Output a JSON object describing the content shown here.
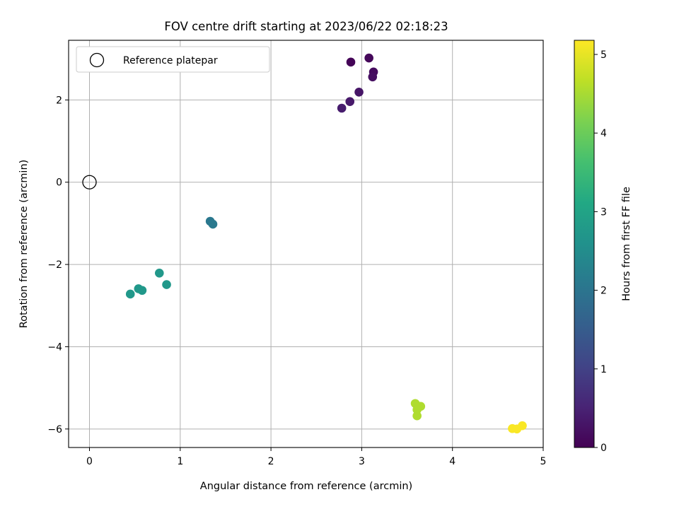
{
  "chart_data": {
    "type": "scatter",
    "title": "FOV centre drift starting at 2023/06/22 02:18:23",
    "xlabel": "Angular distance from reference (arcmin)",
    "ylabel": "Rotation from reference (arcmin)",
    "xlim": [
      -0.23,
      5.0
    ],
    "ylim": [
      -6.45,
      3.45
    ],
    "xticks": [
      0,
      1,
      2,
      3,
      4,
      5
    ],
    "xtick_labels": [
      "0",
      "1",
      "2",
      "3",
      "4",
      "5"
    ],
    "yticks": [
      2,
      0,
      -2,
      -4,
      -6
    ],
    "ytick_labels": [
      "2",
      "0",
      "−2",
      "−4",
      "−6"
    ],
    "grid": true,
    "legend": {
      "location": "upper-left",
      "entries": [
        "Reference platepar"
      ]
    },
    "reference_point": {
      "x": 0,
      "y": 0,
      "label": "Reference platepar"
    },
    "colorbar": {
      "label": "Hours from first FF file",
      "range": [
        0,
        5.18
      ],
      "ticks": [
        0,
        1,
        2,
        3,
        4,
        5
      ],
      "tick_labels": [
        "0",
        "1",
        "2",
        "3",
        "4",
        "5"
      ],
      "colormap": "viridis"
    },
    "points": [
      {
        "x": 2.88,
        "y": 2.92,
        "hours": 0.05
      },
      {
        "x": 3.08,
        "y": 3.02,
        "hours": 0.1
      },
      {
        "x": 3.13,
        "y": 2.68,
        "hours": 0.15
      },
      {
        "x": 3.12,
        "y": 2.56,
        "hours": 0.2
      },
      {
        "x": 2.97,
        "y": 2.19,
        "hours": 0.3
      },
      {
        "x": 2.87,
        "y": 1.96,
        "hours": 0.35
      },
      {
        "x": 2.78,
        "y": 1.8,
        "hours": 0.4
      },
      {
        "x": 1.33,
        "y": -0.95,
        "hours": 2.05
      },
      {
        "x": 1.36,
        "y": -1.02,
        "hours": 2.1
      },
      {
        "x": 0.77,
        "y": -2.21,
        "hours": 2.75
      },
      {
        "x": 0.85,
        "y": -2.49,
        "hours": 2.75
      },
      {
        "x": 0.54,
        "y": -2.59,
        "hours": 2.75
      },
      {
        "x": 0.58,
        "y": -2.63,
        "hours": 2.75
      },
      {
        "x": 0.45,
        "y": -2.72,
        "hours": 2.75
      },
      {
        "x": 3.59,
        "y": -5.38,
        "hours": 4.55
      },
      {
        "x": 3.65,
        "y": -5.45,
        "hours": 4.55
      },
      {
        "x": 3.61,
        "y": -5.53,
        "hours": 4.55
      },
      {
        "x": 3.61,
        "y": -5.68,
        "hours": 4.55
      },
      {
        "x": 4.66,
        "y": -5.99,
        "hours": 5.15
      },
      {
        "x": 4.71,
        "y": -6.0,
        "hours": 5.15
      },
      {
        "x": 4.77,
        "y": -5.92,
        "hours": 5.15
      }
    ]
  }
}
